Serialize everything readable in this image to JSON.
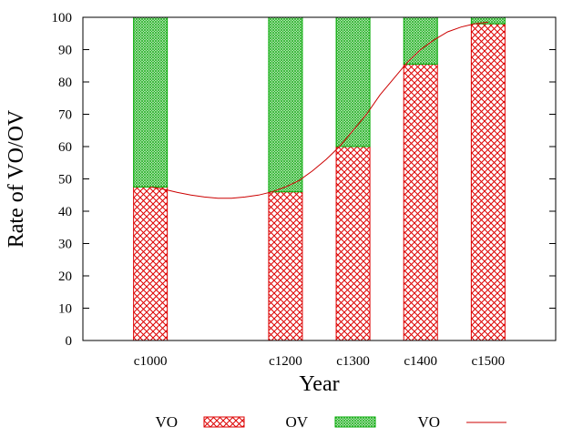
{
  "chart_data": {
    "type": "bar",
    "stacked": true,
    "xlabel": "Year",
    "ylabel": "Rate of VO/OV",
    "ylim": [
      0,
      100
    ],
    "yticks": [
      0,
      10,
      20,
      30,
      40,
      50,
      60,
      70,
      80,
      90,
      100
    ],
    "x_range": [
      900,
      1600
    ],
    "categories": [
      {
        "label": "c1000",
        "x": 1000
      },
      {
        "label": "c1200",
        "x": 1200
      },
      {
        "label": "c1300",
        "x": 1300
      },
      {
        "label": "c1400",
        "x": 1400
      },
      {
        "label": "c1500",
        "x": 1500
      }
    ],
    "series": [
      {
        "name": "VO",
        "kind": "bar",
        "color": "#dd0000",
        "pattern": "crosshatch",
        "values": [
          47.5,
          46,
          60,
          85.5,
          98
        ]
      },
      {
        "name": "OV",
        "kind": "bar",
        "color": "#00aa00",
        "pattern": "fine-mesh",
        "values": [
          52.5,
          54,
          40,
          14.5,
          2
        ]
      },
      {
        "name": "VO",
        "kind": "line",
        "color": "#cc0000",
        "x": [
          1000,
          1020,
          1040,
          1060,
          1080,
          1100,
          1120,
          1140,
          1160,
          1180,
          1200,
          1220,
          1240,
          1260,
          1280,
          1300,
          1320,
          1340,
          1360,
          1380,
          1400,
          1420,
          1440,
          1460,
          1480,
          1500
        ],
        "y": [
          47.5,
          46.8,
          45.8,
          45,
          44.4,
          44,
          44,
          44.4,
          45,
          46,
          47.5,
          49.5,
          52.5,
          56,
          60,
          65,
          70,
          76,
          81,
          86,
          90,
          93,
          95.5,
          97,
          98,
          98.5
        ]
      }
    ],
    "legend": {
      "position": "bottom",
      "entries": [
        "VO",
        "OV",
        "VO"
      ]
    }
  }
}
